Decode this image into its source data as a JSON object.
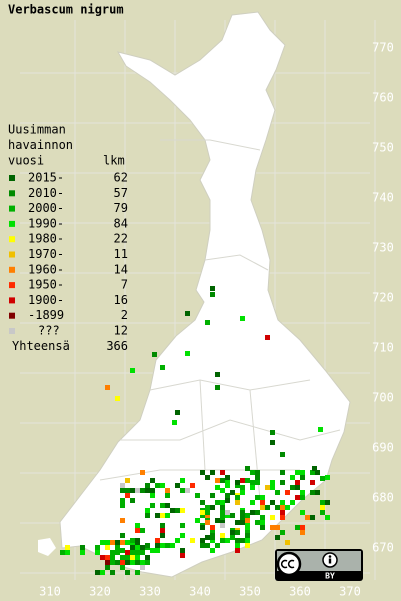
{
  "title": "Verbascum nigrum",
  "legend": {
    "heading": [
      "Uusimman",
      "havainnon",
      "vuosi"
    ],
    "count_heading": "lkm",
    "items": [
      {
        "label": "2015-",
        "count": 62,
        "color": "#006400"
      },
      {
        "label": "2010-",
        "count": 57,
        "color": "#008a00"
      },
      {
        "label": "2000-",
        "count": 79,
        "color": "#00b000"
      },
      {
        "label": "1990-",
        "count": 84,
        "color": "#00e000"
      },
      {
        "label": "1980-",
        "count": 22,
        "color": "#ffff00"
      },
      {
        "label": "1970-",
        "count": 11,
        "color": "#f0c000"
      },
      {
        "label": "1960-",
        "count": 14,
        "color": "#ff7f00"
      },
      {
        "label": "1950-",
        "count": 7,
        "color": "#ff2a00"
      },
      {
        "label": "1900-",
        "count": 16,
        "color": "#d00000"
      },
      {
        "label": "-1899",
        "count": 2,
        "color": "#800000"
      },
      {
        "label": "???",
        "count": 12,
        "color": "#c8c8c8"
      }
    ],
    "total_label": "Yhteensä",
    "total": 366
  },
  "grid": {
    "x_labels": [
      310,
      320,
      330,
      340,
      350,
      360,
      370
    ],
    "y_labels": [
      770,
      760,
      750,
      740,
      730,
      720,
      710,
      700,
      690,
      680,
      670
    ]
  },
  "license": "BY"
}
